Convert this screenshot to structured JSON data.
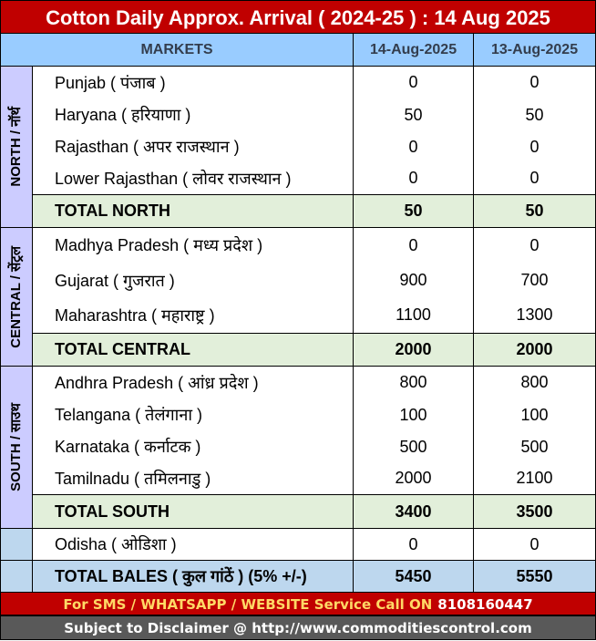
{
  "title": "Cotton Daily Approx. Arrival ( 2024-25 ) : 14 Aug 2025",
  "header": {
    "markets": "MARKETS",
    "col1": "14-Aug-2025",
    "col2": "13-Aug-2025"
  },
  "north": {
    "label": "NORTH / नॉर्थ",
    "rows": [
      {
        "name": "Punjab ( पंजाब )",
        "v1": "0",
        "v2": "0"
      },
      {
        "name": "Haryana ( हरियाणा )",
        "v1": "50",
        "v2": "50"
      },
      {
        "name": "Rajasthan ( अपर राजस्थान )",
        "v1": "0",
        "v2": "0"
      },
      {
        "name": "Lower Rajasthan ( लोवर राजस्थान )",
        "v1": "0",
        "v2": "0"
      }
    ],
    "total": {
      "name": "TOTAL NORTH",
      "v1": "50",
      "v2": "50"
    }
  },
  "central": {
    "label": "CENTRAL / सेंट्रल",
    "rows": [
      {
        "name": "Madhya Pradesh ( मध्य प्रदेश )",
        "v1": "0",
        "v2": "0"
      },
      {
        "name": "Gujarat ( गुजरात )",
        "v1": "900",
        "v2": "700"
      },
      {
        "name": "Maharashtra ( महाराष्ट्र )",
        "v1": "1100",
        "v2": "1300"
      }
    ],
    "total": {
      "name": "TOTAL CENTRAL",
      "v1": "2000",
      "v2": "2000"
    }
  },
  "south": {
    "label": "SOUTH / साउथ",
    "rows": [
      {
        "name": "Andhra Pradesh ( आंध्र प्रदेश )",
        "v1": "800",
        "v2": "800"
      },
      {
        "name": "Telangana ( तेलंगाना )",
        "v1": "100",
        "v2": "100"
      },
      {
        "name": "Karnataka ( कर्नाटक )",
        "v1": "500",
        "v2": "500"
      },
      {
        "name": "Tamilnadu ( तमिलनाडु )",
        "v1": "2000",
        "v2": "2100"
      }
    ],
    "total": {
      "name": "TOTAL SOUTH",
      "v1": "3400",
      "v2": "3500"
    }
  },
  "odisha": {
    "name": "Odisha ( ओडिशा )",
    "v1": "0",
    "v2": "0"
  },
  "grand": {
    "name": "TOTAL BALES ( कुल गांठें ) (5% +/-)",
    "v1": "5450",
    "v2": "5550"
  },
  "footer": {
    "service": "For SMS / WHATSAPP / WEBSITE Service Call  ON",
    "phone": "8108160447",
    "disclaimer": "Subject to Disclaimer @  http://www.commoditiescontrol.com"
  }
}
